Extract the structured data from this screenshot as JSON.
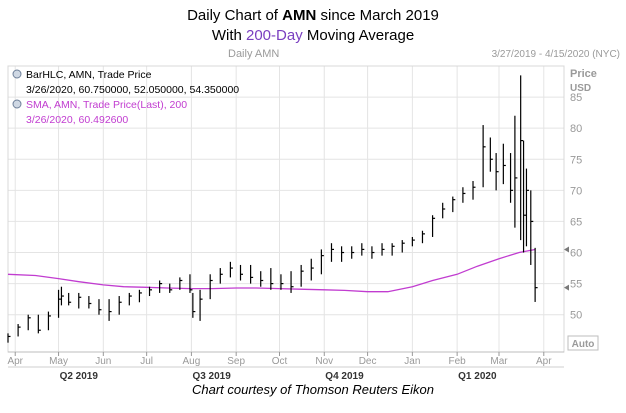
{
  "title": {
    "line1_pre": "Daily Chart of ",
    "line1_ticker": "AMN",
    "line1_post": " since March 2019",
    "line2_pre": "With ",
    "line2_highlight": "200-Day",
    "line2_post": " Moving Average"
  },
  "header": {
    "left_label": "Daily AMN",
    "range_label": "3/27/2019 - 4/15/2020 (NYC)"
  },
  "legend": {
    "bar_line1": "BarHLC, AMN, Trade Price",
    "bar_line2": "3/26/2020, 60.750000, 52.050000, 54.350000",
    "sma_line1": "SMA, AMN, Trade Price(Last),  200",
    "sma_line2": "3/26/2020, 60.492600"
  },
  "axis": {
    "price_label": "Price",
    "unit_label": "USD",
    "auto_label": "Auto"
  },
  "credit": "Chart courtesy of Thomson Reuters Eikon",
  "colors": {
    "bars": "#000000",
    "sma": "#c13cd0",
    "grid": "#e4e4e4",
    "axis_text": "#999999",
    "quarter_text": "#333333"
  },
  "chart_data": {
    "type": "line",
    "yticks": [
      50,
      55,
      60,
      65,
      70,
      75,
      80,
      85
    ],
    "ylim": [
      44,
      90
    ],
    "xlim": [
      "2019-03-27",
      "2020-04-15"
    ],
    "month_ticks": [
      {
        "date": "2019-04-01",
        "label": "Apr"
      },
      {
        "date": "2019-05-01",
        "label": "May"
      },
      {
        "date": "2019-06-01",
        "label": "Jun"
      },
      {
        "date": "2019-07-01",
        "label": "Jul"
      },
      {
        "date": "2019-08-01",
        "label": "Aug"
      },
      {
        "date": "2019-09-01",
        "label": "Sep"
      },
      {
        "date": "2019-10-01",
        "label": "Oct"
      },
      {
        "date": "2019-11-01",
        "label": "Nov"
      },
      {
        "date": "2019-12-01",
        "label": "Dec"
      },
      {
        "date": "2020-01-01",
        "label": "Jan"
      },
      {
        "date": "2020-02-01",
        "label": "Feb"
      },
      {
        "date": "2020-03-01",
        "label": "Mar"
      },
      {
        "date": "2020-04-01",
        "label": "Apr"
      }
    ],
    "quarter_labels": [
      {
        "date": "2019-05-15",
        "label": "Q2 2019"
      },
      {
        "date": "2019-08-15",
        "label": "Q3 2019"
      },
      {
        "date": "2019-11-15",
        "label": "Q4 2019"
      },
      {
        "date": "2020-02-15",
        "label": "Q1 2020"
      }
    ],
    "series": [
      {
        "name": "BarHLC, AMN, Trade Price",
        "kind": "hlc",
        "points": [
          [
            "2019-03-27",
            47.0,
            45.5,
            46.5
          ],
          [
            "2019-04-03",
            48.5,
            46.5,
            48.0
          ],
          [
            "2019-04-10",
            50.0,
            47.5,
            49.5
          ],
          [
            "2019-04-17",
            50.0,
            47.0,
            47.5
          ],
          [
            "2019-04-24",
            50.5,
            47.5,
            49.8
          ],
          [
            "2019-05-01",
            54.0,
            49.5,
            52.5
          ],
          [
            "2019-05-03",
            54.5,
            51.5,
            53.0
          ],
          [
            "2019-05-08",
            53.5,
            51.5,
            52.0
          ],
          [
            "2019-05-15",
            53.5,
            51.0,
            52.8
          ],
          [
            "2019-05-22",
            53.0,
            51.0,
            51.8
          ],
          [
            "2019-05-29",
            52.5,
            50.0,
            50.8
          ],
          [
            "2019-06-05",
            52.5,
            49.0,
            50.5
          ],
          [
            "2019-06-12",
            53.0,
            50.0,
            52.0
          ],
          [
            "2019-06-19",
            53.5,
            51.5,
            53.0
          ],
          [
            "2019-06-26",
            54.0,
            52.0,
            53.5
          ],
          [
            "2019-07-03",
            54.5,
            53.0,
            54.0
          ],
          [
            "2019-07-10",
            55.5,
            53.5,
            55.0
          ],
          [
            "2019-07-17",
            55.0,
            53.5,
            54.0
          ],
          [
            "2019-07-24",
            56.0,
            54.0,
            55.5
          ],
          [
            "2019-07-31",
            56.5,
            53.5,
            54.0
          ],
          [
            "2019-08-02",
            53.5,
            49.5,
            50.5
          ],
          [
            "2019-08-07",
            54.0,
            49.0,
            52.5
          ],
          [
            "2019-08-14",
            56.5,
            52.5,
            55.5
          ],
          [
            "2019-08-21",
            57.5,
            55.0,
            56.5
          ],
          [
            "2019-08-28",
            58.5,
            56.0,
            57.5
          ],
          [
            "2019-09-04",
            58.0,
            55.5,
            56.5
          ],
          [
            "2019-09-11",
            58.0,
            55.0,
            56.0
          ],
          [
            "2019-09-18",
            57.0,
            54.5,
            55.5
          ],
          [
            "2019-09-25",
            57.5,
            54.0,
            55.0
          ],
          [
            "2019-10-02",
            56.5,
            54.0,
            55.0
          ],
          [
            "2019-10-09",
            57.0,
            53.5,
            54.5
          ],
          [
            "2019-10-16",
            58.0,
            54.5,
            57.0
          ],
          [
            "2019-10-23",
            59.0,
            55.5,
            57.5
          ],
          [
            "2019-10-30",
            60.5,
            56.5,
            59.5
          ],
          [
            "2019-11-06",
            61.5,
            58.5,
            60.5
          ],
          [
            "2019-11-13",
            61.0,
            58.5,
            60.0
          ],
          [
            "2019-11-20",
            61.0,
            59.0,
            60.0
          ],
          [
            "2019-11-27",
            61.5,
            59.5,
            60.5
          ],
          [
            "2019-12-04",
            61.0,
            59.0,
            60.0
          ],
          [
            "2019-12-11",
            61.5,
            59.5,
            60.5
          ],
          [
            "2019-12-18",
            61.5,
            59.5,
            61.0
          ],
          [
            "2019-12-25",
            62.0,
            60.0,
            61.5
          ],
          [
            "2020-01-01",
            62.5,
            61.0,
            62.0
          ],
          [
            "2020-01-08",
            63.5,
            61.5,
            63.0
          ],
          [
            "2020-01-15",
            66.0,
            62.5,
            65.5
          ],
          [
            "2020-01-22",
            68.0,
            65.5,
            67.0
          ],
          [
            "2020-01-29",
            69.0,
            66.5,
            68.5
          ],
          [
            "2020-02-05",
            70.5,
            68.0,
            69.5
          ],
          [
            "2020-02-12",
            71.5,
            68.5,
            70.5
          ],
          [
            "2020-02-19",
            80.5,
            70.5,
            77.0
          ],
          [
            "2020-02-24",
            78.5,
            73.0,
            75.0
          ],
          [
            "2020-02-28",
            76.0,
            70.0,
            73.0
          ],
          [
            "2020-03-04",
            77.5,
            71.0,
            74.0
          ],
          [
            "2020-03-09",
            76.0,
            68.0,
            70.0
          ],
          [
            "2020-03-12",
            82.0,
            64.0,
            72.0
          ],
          [
            "2020-03-16",
            88.5,
            62.0,
            78.0
          ],
          [
            "2020-03-18",
            78.0,
            60.0,
            66.0
          ],
          [
            "2020-03-20",
            73.5,
            61.0,
            70.0
          ],
          [
            "2020-03-23",
            70.0,
            58.0,
            65.0
          ],
          [
            "2020-03-26",
            60.75,
            52.05,
            54.35
          ]
        ]
      },
      {
        "name": "SMA, AMN, Trade Price(Last),  200",
        "kind": "line",
        "points": [
          [
            "2019-03-27",
            56.5
          ],
          [
            "2019-04-15",
            56.3
          ],
          [
            "2019-05-01",
            55.8
          ],
          [
            "2019-05-15",
            55.3
          ],
          [
            "2019-06-01",
            54.8
          ],
          [
            "2019-06-15",
            54.5
          ],
          [
            "2019-07-01",
            54.4
          ],
          [
            "2019-07-15",
            54.3
          ],
          [
            "2019-08-01",
            54.2
          ],
          [
            "2019-08-15",
            54.2
          ],
          [
            "2019-09-01",
            54.3
          ],
          [
            "2019-09-15",
            54.3
          ],
          [
            "2019-10-01",
            54.2
          ],
          [
            "2019-10-15",
            54.1
          ],
          [
            "2019-11-01",
            54.0
          ],
          [
            "2019-11-15",
            53.9
          ],
          [
            "2019-12-01",
            53.7
          ],
          [
            "2019-12-15",
            53.7
          ],
          [
            "2020-01-01",
            54.5
          ],
          [
            "2020-01-15",
            55.5
          ],
          [
            "2020-02-01",
            56.5
          ],
          [
            "2020-02-15",
            57.8
          ],
          [
            "2020-03-01",
            59.0
          ],
          [
            "2020-03-15",
            60.0
          ],
          [
            "2020-03-26",
            60.49
          ]
        ]
      }
    ],
    "last_value_markers": [
      60.49,
      54.35
    ]
  }
}
